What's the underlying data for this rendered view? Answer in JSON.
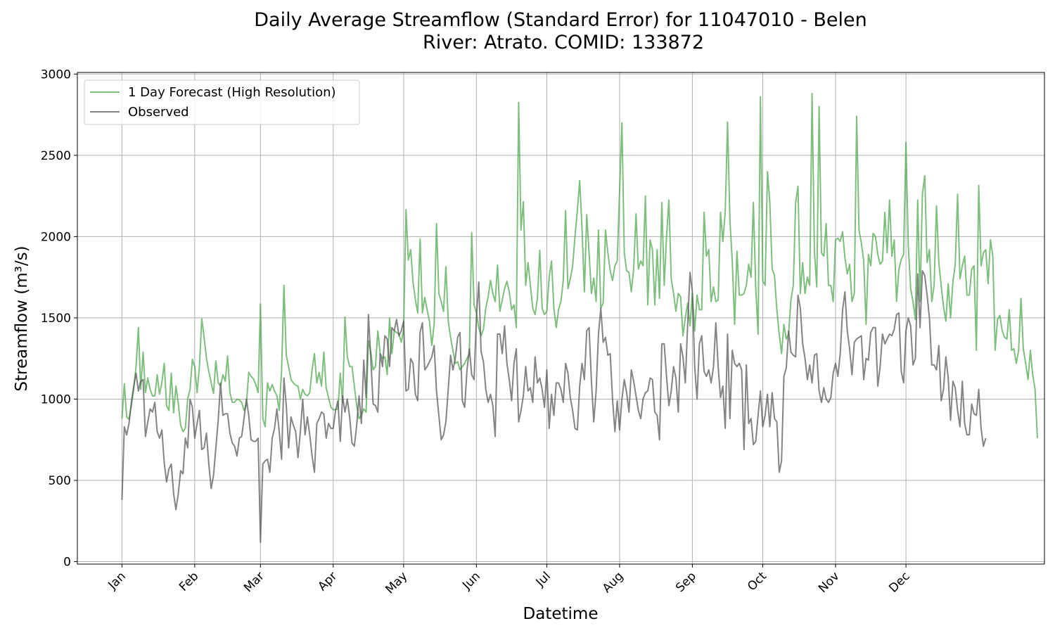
{
  "chart_data": {
    "type": "line",
    "title_line1": "Daily Average Streamflow (Standard Error) for 11047010 - Belen",
    "title_line2": "River: Atrato. COMID: 133872",
    "xlabel": "Datetime",
    "ylabel": "Streamflow (m³/s)",
    "ylim": [
      -15,
      3010
    ],
    "yticks": [
      0,
      500,
      1000,
      1500,
      2000,
      2500,
      3000
    ],
    "x_unit": "day-of-year",
    "xlim": [
      -18,
      394
    ],
    "x_tick_days": [
      1,
      32,
      60,
      91,
      121,
      152,
      182,
      213,
      244,
      274,
      305,
      335
    ],
    "x_tick_labels": [
      "Jan",
      "Feb",
      "Mar",
      "Apr",
      "May",
      "Jun",
      "Jul",
      "Aug",
      "Sep",
      "Oct",
      "Nov",
      "Dec"
    ],
    "grid": true,
    "legend_position": "top-left",
    "series": [
      {
        "name": "1 Day Forecast (High Resolution)",
        "color": "#4ca64c",
        "values": [
          880,
          1095,
          890,
          875,
          960,
          1060,
          1200,
          1440,
          1060,
          1290,
          1040,
          1130,
          1060,
          1020,
          1020,
          1150,
          1030,
          1100,
          1220,
          960,
          930,
          1160,
          915,
          1080,
          970,
          840,
          800,
          820,
          1000,
          1060,
          1245,
          1200,
          1040,
          1200,
          1495,
          1380,
          1250,
          1170,
          1100,
          1035,
          1235,
          1100,
          1080,
          1150,
          1110,
          1265,
          1040,
          980,
          980,
          1000,
          995,
          980,
          930,
          960,
          1165,
          1140,
          1125,
          1090,
          1040,
          1585,
          880,
          830,
          1100,
          1050,
          1090,
          1050,
          1020,
          930,
          1170,
          1700,
          1270,
          1200,
          1120,
          1100,
          1085,
          1080,
          1000,
          1060,
          1030,
          1020,
          1040,
          1180,
          1280,
          1100,
          1165,
          1080,
          1290,
          1070,
          1010,
          950,
          935,
          935,
          940,
          1160,
          980,
          1505,
          1260,
          1200,
          1200,
          1080,
          960,
          880,
          900,
          940,
          920,
          1360,
          1290,
          1180,
          1200,
          1420,
          1280,
          1250,
          1260,
          1150,
          1500,
          1280,
          1420,
          1410,
          1400,
          1350,
          1430,
          2165,
          1855,
          1920,
          1720,
          1610,
          1530,
          1985,
          1530,
          1625,
          1550,
          1480,
          1330,
          1460,
          2080,
          1650,
          1600,
          1540,
          1815,
          1480,
          1380,
          1300,
          1220,
          1230,
          1180,
          1200,
          1220,
          1250,
          1280,
          2025,
          1580,
          1530,
          1440,
          1390,
          1430,
          1560,
          1630,
          1730,
          1650,
          1600,
          1825,
          1540,
          1610,
          1680,
          1725,
          1660,
          1550,
          1580,
          1440,
          2825,
          2040,
          2215,
          1700,
          1840,
          1700,
          1560,
          1520,
          1620,
          1915,
          1560,
          1520,
          1540,
          1750,
          1850,
          1560,
          1440,
          1550,
          1600,
          1730,
          2160,
          1680,
          1740,
          1820,
          2000,
          2160,
          2345,
          2050,
          1660,
          2135,
          1900,
          1650,
          1745,
          1600,
          2040,
          1560,
          1590,
          2040,
          1900,
          1790,
          1730,
          1820,
          1850,
          2280,
          2700,
          1900,
          1790,
          1780,
          1660,
          1800,
          2140,
          1800,
          1850,
          1820,
          2250,
          1580,
          1980,
          1920,
          1580,
          1920,
          1620,
          2210,
          1700,
          2000,
          2225,
          1740,
          1650,
          1540,
          1650,
          1630,
          1390,
          1500,
          1590,
          1450,
          1650,
          1420,
          1640,
          1550,
          1550,
          2150,
          1880,
          1920,
          1600,
          1690,
          1600,
          1610,
          2150,
          1970,
          2150,
          2705,
          2100,
          1850,
          1460,
          1910,
          1640,
          1640,
          1650,
          1700,
          1830,
          1750,
          2210,
          1690,
          1400,
          2860,
          1730,
          1700,
          2400,
          2210,
          1800,
          1760,
          1550,
          1400,
          1280,
          1460,
          1370,
          1400,
          1610,
          1700,
          2210,
          2310,
          1650,
          1840,
          1650,
          1750,
          1700,
          2880,
          1910,
          1690,
          2800,
          1900,
          1880,
          2080,
          1700,
          1700,
          1600,
          1980,
          1990,
          1970,
          2030,
          1870,
          1770,
          1830,
          1600,
          1650,
          2740,
          2040,
          1960,
          1850,
          1460,
          1890,
          1820,
          2020,
          2000,
          1890,
          1830,
          1850,
          2150,
          1900,
          2225,
          1880,
          1980,
          1600,
          1800,
          1860,
          1890,
          2580,
          1940,
          1680,
          1600,
          1490,
          2225,
          1600,
          2260,
          2375,
          1840,
          1920,
          1600,
          1700,
          2190,
          1840,
          1700,
          1570,
          1480,
          1710,
          1500,
          1720,
          1830,
          2260,
          1740,
          1820,
          1880,
          1640,
          1640,
          1800,
          1820,
          1300,
          2315,
          1820,
          1900,
          1920,
          1710,
          1980,
          1880,
          1300,
          1490,
          1515,
          1420,
          1380,
          1370,
          1550,
          1300,
          1310,
          1220,
          1300,
          1620,
          1310,
          1220,
          1120,
          1300,
          1150,
          1060,
          760
        ],
        "fill_line": false
      },
      {
        "name": "Observed",
        "color": "#555555",
        "values": [
          380,
          830,
          780,
          850,
          980,
          1080,
          1160,
          1050,
          1110,
          1120,
          770,
          860,
          940,
          920,
          980,
          800,
          760,
          810,
          610,
          490,
          570,
          600,
          420,
          320,
          420,
          560,
          540,
          760,
          700,
          1000,
          950,
          760,
          850,
          930,
          690,
          700,
          790,
          600,
          450,
          530,
          700,
          870,
          1100,
          900,
          910,
          910,
          790,
          730,
          710,
          650,
          760,
          770,
          880,
          1000,
          900,
          750,
          740,
          740,
          760,
          120,
          600,
          620,
          630,
          550,
          760,
          820,
          940,
          800,
          630,
          1130,
          960,
          700,
          890,
          840,
          800,
          640,
          800,
          1000,
          780,
          890,
          780,
          650,
          550,
          850,
          880,
          920,
          910,
          760,
          850,
          820,
          820,
          930,
          990,
          740,
          1020,
          920,
          1000,
          890,
          730,
          710,
          840,
          1020,
          850,
          1240,
          1010,
          1520,
          1250,
          970,
          960,
          920,
          1280,
          1200,
          1390,
          1370,
          1200,
          1440,
          1420,
          1490,
          1390,
          1420,
          1480,
          1050,
          1060,
          1250,
          1220,
          1030,
          990,
          1410,
          1470,
          1180,
          1200,
          1230,
          1260,
          1330,
          1050,
          900,
          750,
          780,
          860,
          1060,
          1270,
          1180,
          1250,
          1380,
          1410,
          990,
          950,
          1180,
          1310,
          1150,
          1120,
          1500,
          1720,
          1290,
          1230,
          1060,
          980,
          1030,
          960,
          770,
          1400,
          1400,
          1280,
          1450,
          1220,
          1120,
          990,
          1220,
          1310,
          860,
          930,
          1020,
          1200,
          1050,
          1070,
          980,
          1260,
          1100,
          1130,
          1060,
          950,
          1180,
          820,
          1030,
          900,
          1100,
          1100,
          1060,
          980,
          1220,
          1160,
          1010,
          930,
          820,
          810,
          1080,
          1220,
          1120,
          1420,
          1440,
          1110,
          860,
          1050,
          1400,
          1560,
          1350,
          1380,
          1270,
          1280,
          1000,
          800,
          990,
          810,
          1000,
          1120,
          1040,
          920,
          1180,
          1110,
          1020,
          930,
          880,
          1000,
          1040,
          1050,
          1130,
          1120,
          920,
          900,
          750,
          1340,
          1340,
          1140,
          960,
          1050,
          1200,
          1130,
          920,
          1340,
          1260,
          1100,
          1460,
          1780,
          1660,
          1200,
          1000,
          1340,
          1390,
          1170,
          1140,
          1180,
          1100,
          1200,
          1470,
          1200,
          1010,
          1080,
          820,
          1400,
          880,
          1300,
          1220,
          1200,
          1220,
          1180,
          690,
          1210,
          850,
          880,
          720,
          740,
          900,
          1050,
          830,
          900,
          1030,
          830,
          1040,
          880,
          860,
          550,
          620,
          1140,
          1190,
          1420,
          1290,
          1270,
          1260,
          1640,
          1560,
          1340,
          1250,
          1120,
          1210,
          1100,
          1270,
          1280,
          1050,
          980,
          1070,
          1000,
          980,
          1010,
          1160,
          1220,
          1140,
          1280,
          1550,
          1660,
          1420,
          1310,
          1150,
          1350,
          1370,
          1380,
          1390,
          1120,
          1250,
          1240,
          1410,
          1440,
          1440,
          1080,
          1200,
          1400,
          1340,
          1370,
          1400,
          1390,
          1430,
          1520,
          1530,
          1170,
          1100,
          1420,
          1500,
          1450,
          1210,
          1250,
          1770,
          1440,
          1790,
          1760,
          1640,
          1500,
          1210,
          1210,
          1180,
          1330,
          990,
          1060,
          1260,
          1130,
          870,
          1110,
          1070,
          930,
          830,
          1110,
          850,
          780,
          780,
          970,
          910,
          900,
          1060,
          820,
          710,
          760
        ],
        "fill_line": false
      }
    ]
  }
}
